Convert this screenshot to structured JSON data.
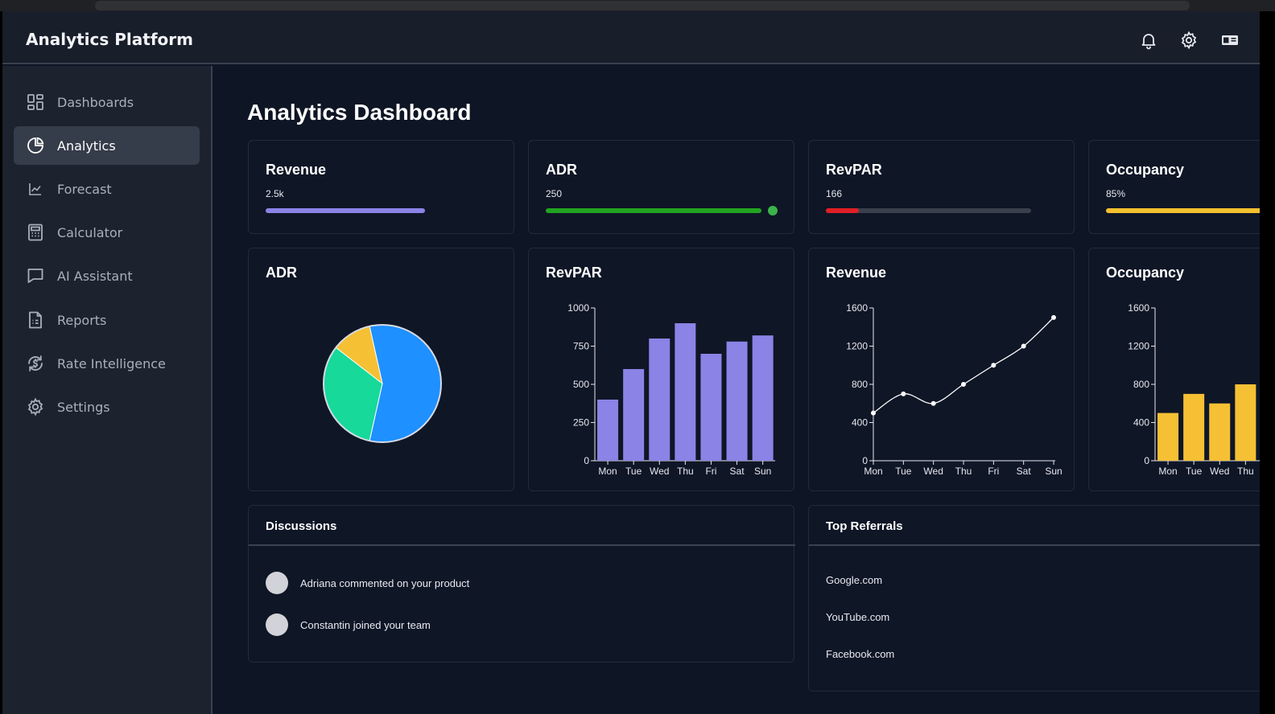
{
  "app": {
    "title": "Analytics Platform"
  },
  "header_icons": [
    "bell-icon",
    "gear-icon",
    "language-icon"
  ],
  "sidebar": {
    "items": [
      {
        "label": "Dashboards",
        "icon": "dashboard-grid-icon",
        "active": false
      },
      {
        "label": "Analytics",
        "icon": "pie-chart-icon",
        "active": true
      },
      {
        "label": "Forecast",
        "icon": "line-chart-icon",
        "active": false
      },
      {
        "label": "Calculator",
        "icon": "calculator-icon",
        "active": false
      },
      {
        "label": "AI Assistant",
        "icon": "chat-icon",
        "active": false
      },
      {
        "label": "Reports",
        "icon": "document-icon",
        "active": false
      },
      {
        "label": "Rate Intelligence",
        "icon": "currency-refresh-icon",
        "active": false
      },
      {
        "label": "Settings",
        "icon": "gear-icon",
        "active": false
      }
    ]
  },
  "main": {
    "title": "Analytics Dashboard"
  },
  "metrics": [
    {
      "title": "Revenue",
      "value": "2.5k",
      "progress": 0.8,
      "color": "#8b83e6"
    },
    {
      "title": "ADR",
      "value": "250",
      "progress": 1.0,
      "color": "#22a322",
      "status": "complete"
    },
    {
      "title": "RevPAR",
      "value": "166",
      "progress": 0.16,
      "color": "#e01e25"
    },
    {
      "title": "Occupancy",
      "value": "85%",
      "progress": 0.85,
      "color": "#f5c02e"
    }
  ],
  "colors": {
    "purple": "#8b83e6",
    "blue": "#1e90ff",
    "teal": "#16d99a",
    "yellow": "#f5c034"
  },
  "chart_data": [
    {
      "type": "pie",
      "title": "ADR",
      "slices": [
        {
          "value": 57,
          "color": "#1e90ff"
        },
        {
          "value": 32,
          "color": "#16d99a"
        },
        {
          "value": 11,
          "color": "#f5c034"
        }
      ]
    },
    {
      "type": "bar",
      "title": "RevPAR",
      "categories": [
        "Mon",
        "Tue",
        "Wed",
        "Thu",
        "Fri",
        "Sat",
        "Sun"
      ],
      "values": [
        400,
        600,
        800,
        900,
        700,
        780,
        820
      ],
      "yticks": [
        0,
        250,
        500,
        750,
        1000
      ],
      "ylim": [
        0,
        1000
      ],
      "color": "#8b83e6"
    },
    {
      "type": "line",
      "title": "Revenue",
      "categories": [
        "Mon",
        "Tue",
        "Wed",
        "Thu",
        "Fri",
        "Sat",
        "Sun"
      ],
      "values": [
        500,
        700,
        600,
        800,
        1000,
        1200,
        1500
      ],
      "yticks": [
        0,
        400,
        800,
        1200,
        1600
      ],
      "ylim": [
        0,
        1600
      ],
      "color": "#ffffff"
    },
    {
      "type": "bar",
      "title": "Occupancy",
      "categories": [
        "Mon",
        "Tue",
        "Wed",
        "Thu"
      ],
      "values": [
        500,
        700,
        600,
        800
      ],
      "yticks": [
        0,
        400,
        800,
        1200,
        1600
      ],
      "ylim": [
        0,
        1600
      ],
      "color": "#f5c034"
    }
  ],
  "discussions": {
    "title": "Discussions",
    "items": [
      {
        "text": "Adriana commented on your product"
      },
      {
        "text": "Constantin joined your team"
      }
    ]
  },
  "referrals": {
    "title": "Top Referrals",
    "items": [
      "Google.com",
      "YouTube.com",
      "Facebook.com"
    ]
  }
}
